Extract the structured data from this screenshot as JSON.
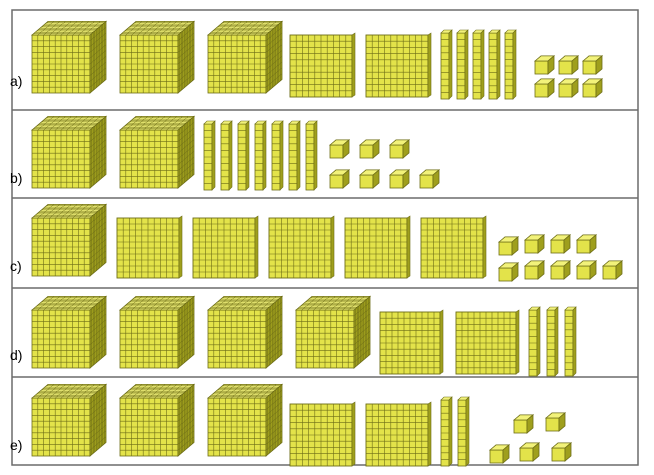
{
  "colors": {
    "fill": "#e3e34a",
    "side": "#9f9f1d",
    "top": "#f2f27a",
    "grid": "#6d6d16",
    "border": "#6b6b6b"
  },
  "rows": [
    {
      "label": "a)",
      "thousands": 3,
      "hundreds": 2,
      "tens": 5,
      "ones": 6
    },
    {
      "label": "b)",
      "thousands": 2,
      "hundreds": 0,
      "tens": 7,
      "ones": 7
    },
    {
      "label": "c)",
      "thousands": 1,
      "hundreds": 5,
      "tens": 0,
      "ones": 9
    },
    {
      "label": "d)",
      "thousands": 4,
      "hundreds": 2,
      "tens": 3,
      "ones": 0
    },
    {
      "label": "e)",
      "thousands": 3,
      "hundreds": 2,
      "tens": 2,
      "ones": 5
    }
  ]
}
